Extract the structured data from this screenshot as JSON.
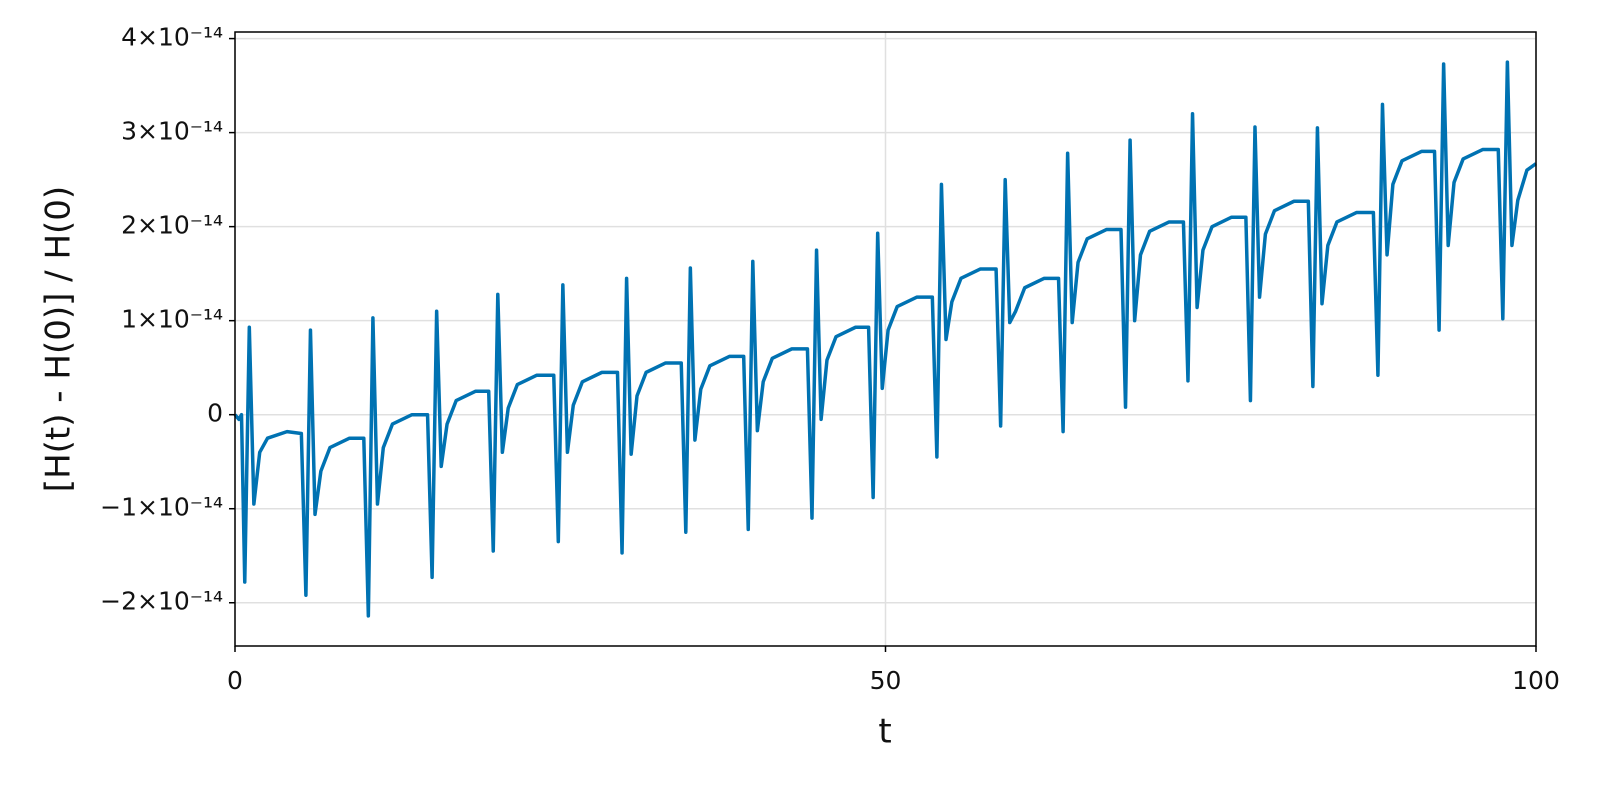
{
  "chart_data": {
    "type": "line",
    "x_label": "t",
    "y_label": "[H(t) - H(0)] / H(0)",
    "xlim": [
      0,
      100
    ],
    "xticks": [
      0,
      50,
      100
    ],
    "ylim": [
      -2.46e-14,
      4.07e-14
    ],
    "yticks": [
      {
        "value": -2e-14,
        "label": "−2×10⁻¹⁴"
      },
      {
        "value": -1e-14,
        "label": "−1×10⁻¹⁴"
      },
      0,
      {
        "value": 1e-14,
        "label": "1×10⁻¹⁴"
      },
      {
        "value": 2e-14,
        "label": "2×10⁻¹⁴"
      },
      {
        "value": 3e-14,
        "label": "3×10⁻¹⁴"
      },
      {
        "value": 4e-14,
        "label": "4×10⁻¹⁴"
      }
    ],
    "grid": true,
    "x": [
      0,
      0.3,
      0.5,
      0.75,
      1.1,
      1.45,
      1.9,
      2.5,
      4.0,
      5.1,
      5.45,
      5.8,
      6.15,
      6.6,
      7.3,
      8.8,
      9.9,
      10.25,
      10.6,
      10.95,
      11.4,
      12.1,
      13.6,
      14.8,
      15.15,
      15.5,
      15.85,
      16.3,
      17.0,
      18.5,
      19.5,
      19.85,
      20.2,
      20.55,
      21.0,
      21.7,
      23.2,
      24.5,
      24.85,
      25.2,
      25.55,
      26.0,
      26.7,
      28.2,
      29.4,
      29.75,
      30.1,
      30.45,
      30.9,
      31.6,
      33.1,
      34.3,
      34.65,
      35.0,
      35.35,
      35.8,
      36.5,
      38.0,
      39.1,
      39.45,
      39.8,
      40.15,
      40.6,
      41.3,
      42.8,
      44.0,
      44.35,
      44.7,
      45.05,
      45.5,
      46.2,
      47.7,
      48.7,
      49.05,
      49.4,
      49.75,
      50.2,
      50.9,
      52.4,
      53.6,
      53.95,
      54.3,
      54.65,
      55.1,
      55.8,
      57.3,
      58.5,
      58.85,
      59.2,
      59.55,
      60.0,
      60.7,
      62.2,
      63.3,
      63.65,
      64.0,
      64.35,
      64.8,
      65.5,
      67.0,
      68.1,
      68.45,
      68.8,
      69.15,
      69.6,
      70.3,
      71.8,
      72.9,
      73.25,
      73.6,
      73.95,
      74.4,
      75.1,
      76.6,
      77.7,
      78.05,
      78.4,
      78.75,
      79.2,
      79.9,
      81.4,
      82.5,
      82.85,
      83.2,
      83.55,
      84.0,
      84.7,
      86.2,
      87.5,
      87.85,
      88.2,
      88.55,
      89.0,
      89.7,
      91.2,
      92.2,
      92.55,
      92.9,
      93.25,
      93.7,
      94.4,
      95.9,
      97.1,
      97.45,
      97.8,
      98.15,
      98.6,
      99.3,
      100
    ],
    "series": [
      {
        "color": "#0072b2",
        "values": [
          0,
          -5e-16,
          0,
          -1.78e-14,
          9.3e-15,
          -9.5e-15,
          -4e-15,
          -2.5e-15,
          -1.8e-15,
          -2e-15,
          -1.92e-14,
          9e-15,
          -1.06e-14,
          -6e-15,
          -3.5e-15,
          -2.5e-15,
          -2.5e-15,
          -2.14e-14,
          1.03e-14,
          -9.5e-15,
          -3.5e-15,
          -1e-15,
          0,
          0,
          -1.73e-14,
          1.1e-14,
          -5.5e-15,
          -1e-15,
          1.5e-15,
          2.5e-15,
          2.5e-15,
          -1.45e-14,
          1.28e-14,
          -4e-15,
          7e-16,
          3.2e-15,
          4.2e-15,
          4.2e-15,
          -1.35e-14,
          1.38e-14,
          -4e-15,
          1e-15,
          3.5e-15,
          4.5e-15,
          4.5e-15,
          -1.47e-14,
          1.45e-14,
          -4.2e-15,
          2e-15,
          4.5e-15,
          5.5e-15,
          5.5e-15,
          -1.25e-14,
          1.56e-14,
          -2.7e-15,
          2.7e-15,
          5.2e-15,
          6.2e-15,
          6.2e-15,
          -1.22e-14,
          1.63e-14,
          -1.7e-15,
          3.5e-15,
          6e-15,
          7e-15,
          7e-15,
          -1.1e-14,
          1.75e-14,
          -5e-16,
          5.8e-15,
          8.3e-15,
          9.3e-15,
          9.3e-15,
          -8.8e-15,
          1.93e-14,
          2.8e-15,
          9e-15,
          1.15e-14,
          1.25e-14,
          1.25e-14,
          -4.5e-15,
          2.45e-14,
          8e-15,
          1.2e-14,
          1.45e-14,
          1.55e-14,
          1.55e-14,
          -1.2e-15,
          2.5e-14,
          9.8e-15,
          1.1e-14,
          1.35e-14,
          1.45e-14,
          1.45e-14,
          -1.8e-15,
          2.78e-14,
          9.8e-15,
          1.62e-14,
          1.87e-14,
          1.97e-14,
          1.97e-14,
          8e-16,
          2.92e-14,
          1e-14,
          1.7e-14,
          1.95e-14,
          2.05e-14,
          2.05e-14,
          3.6e-15,
          3.2e-14,
          1.14e-14,
          1.75e-14,
          2e-14,
          2.1e-14,
          2.1e-14,
          1.5e-15,
          3.06e-14,
          1.25e-14,
          1.92e-14,
          2.17e-14,
          2.27e-14,
          2.27e-14,
          3e-15,
          3.05e-14,
          1.18e-14,
          1.8e-14,
          2.05e-14,
          2.15e-14,
          2.15e-14,
          4.2e-15,
          3.3e-14,
          1.7e-14,
          2.45e-14,
          2.7e-14,
          2.8e-14,
          2.8e-14,
          9e-15,
          3.73e-14,
          1.8e-14,
          2.47e-14,
          2.72e-14,
          2.82e-14,
          2.82e-14,
          1.02e-14,
          3.75e-14,
          1.8e-14,
          2.28e-14,
          2.6e-14,
          2.67e-14
        ]
      }
    ]
  }
}
